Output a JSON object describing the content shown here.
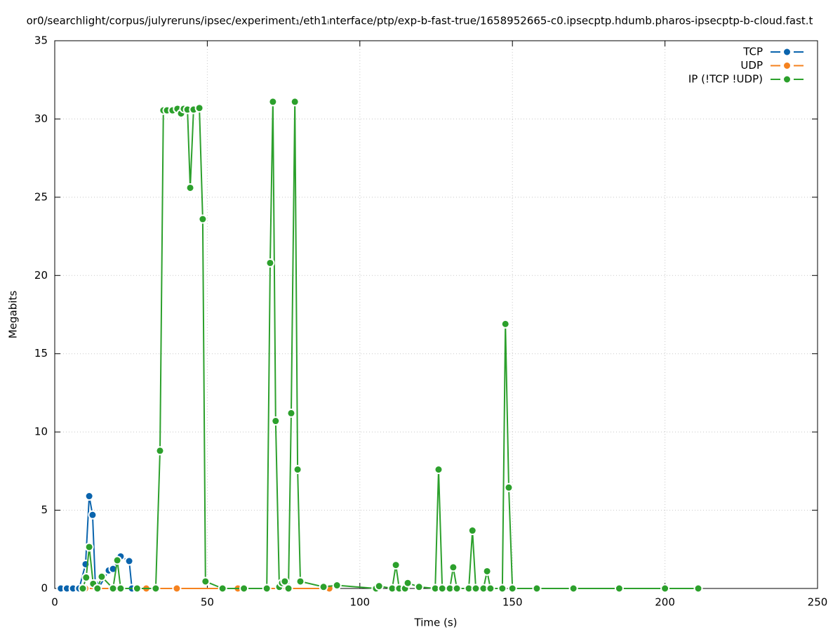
{
  "chart_data": {
    "type": "line",
    "title": "or0/searchlight/corpus/julyreruns/ipsec/experiment₁/eth1ᵢnterface/ptp/exp-b-fast-true/1658952665-c0.ipsecptp.hdumb.pharos-ipsecptp-b-cloud.fast.t",
    "x_label": "Time (s)",
    "y_label": "Megabits",
    "xlim": [
      0,
      250
    ],
    "ylim": [
      0,
      35
    ],
    "xticks": [
      0,
      50,
      100,
      150,
      200,
      250
    ],
    "yticks": [
      0,
      5,
      10,
      15,
      20,
      25,
      30,
      35
    ],
    "grid": true,
    "legend": "top-right",
    "series": [
      {
        "name": "TCP",
        "color": "#0a64ad",
        "x": [
          2,
          4,
          6,
          8,
          10.1,
          11.3,
          12.4,
          13.3,
          14.3,
          17.7,
          19.1,
          21.6,
          24.4,
          25.3,
          30
        ],
        "values": [
          0,
          0,
          0,
          0,
          1.55,
          5.9,
          4.7,
          0.3,
          0,
          1.15,
          1.25,
          2.05,
          1.75,
          0,
          0
        ]
      },
      {
        "name": "UDP",
        "color": "#f5821f",
        "x": [
          10,
          20,
          30,
          40,
          60,
          90
        ],
        "values": [
          0,
          0,
          0,
          0,
          0,
          0
        ]
      },
      {
        "name": "IP (!TCP  !UDP)",
        "color": "#2ca02c",
        "x": [
          9.2,
          10.3,
          11.3,
          12.6,
          14.0,
          15.4,
          19.1,
          20.5,
          21.6,
          27,
          33.1,
          34.5,
          35.6,
          36.8,
          38.6,
          40.2,
          41.4,
          42.3,
          43.5,
          44.4,
          45.5,
          47.4,
          48.5,
          49.4,
          55,
          62,
          69.5,
          70.6,
          71.5,
          72.4,
          73.6,
          74.5,
          75.4,
          76.6,
          77.5,
          78.7,
          79.6,
          80.5,
          88.1,
          92.5,
          105.3,
          106.3,
          110.6,
          111.8,
          112.9,
          114.8,
          115.7,
          119.4,
          124.7,
          125.8,
          127.0,
          129.5,
          130.6,
          131.8,
          135.7,
          136.9,
          138.0,
          140.5,
          141.7,
          142.8,
          146.7,
          147.7,
          148.8,
          150.0,
          158,
          170,
          185,
          200,
          210.9
        ],
        "values": [
          0,
          0.7,
          2.65,
          0.3,
          0,
          0.75,
          0,
          1.8,
          0,
          0,
          0,
          8.8,
          30.55,
          30.55,
          30.55,
          30.65,
          30.35,
          30.65,
          30.6,
          25.6,
          30.6,
          30.7,
          23.6,
          0.45,
          0,
          0,
          0,
          20.8,
          31.1,
          10.7,
          0.1,
          0.35,
          0.45,
          0,
          11.2,
          31.1,
          7.6,
          0.45,
          0.1,
          0.2,
          0,
          0.15,
          0,
          1.5,
          0,
          0,
          0.35,
          0.1,
          0,
          7.6,
          0,
          0,
          1.35,
          0,
          0,
          3.7,
          0,
          0,
          1.1,
          0,
          0,
          16.9,
          6.45,
          0,
          0,
          0,
          0,
          0,
          0
        ]
      }
    ]
  }
}
